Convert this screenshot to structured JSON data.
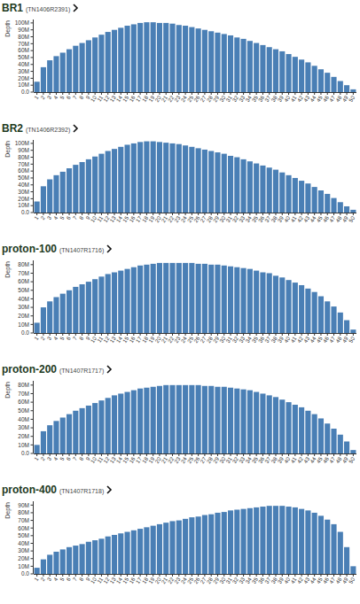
{
  "chart_data": [
    {
      "type": "bar",
      "title": "BR1",
      "subtitle": "(TN1406R2391)",
      "y_label": "Depth",
      "categories": [
        "1",
        "2",
        "3",
        "4",
        "5",
        "6",
        "7",
        "8",
        "9",
        "10",
        "11",
        "12",
        "13",
        "14",
        "15",
        "16",
        "17",
        "18",
        "19",
        "20",
        "21",
        "22",
        "23",
        "24",
        "25",
        "26",
        "27",
        "28",
        "29",
        "30",
        "31",
        "32",
        "33",
        "34",
        "35",
        "36",
        "37",
        "38",
        "39",
        "40",
        "41",
        "42",
        "43",
        "44",
        "45",
        "46",
        "47",
        "48",
        "49",
        "50"
      ],
      "values": [
        15000000,
        36000000,
        46000000,
        52000000,
        57000000,
        62000000,
        67000000,
        71000000,
        75000000,
        79000000,
        83000000,
        87000000,
        90000000,
        93000000,
        96000000,
        98000000,
        100000000,
        101000000,
        101000000,
        100000000,
        100000000,
        99000000,
        97000000,
        96000000,
        94000000,
        92000000,
        90000000,
        88000000,
        86000000,
        84000000,
        82000000,
        79000000,
        77000000,
        74000000,
        71000000,
        68000000,
        65000000,
        62000000,
        59000000,
        55000000,
        51000000,
        47000000,
        43000000,
        38000000,
        33000000,
        28000000,
        22000000,
        16000000,
        10000000,
        4000000
      ],
      "color": "#4a7fb5",
      "ylim": [
        0,
        105000000
      ],
      "yticks": [
        {
          "value": 0,
          "label": "0.0"
        },
        {
          "value": 10000000,
          "label": "10M"
        },
        {
          "value": 20000000,
          "label": "20M"
        },
        {
          "value": 30000000,
          "label": "30M"
        },
        {
          "value": 40000000,
          "label": "40M"
        },
        {
          "value": 50000000,
          "label": "50M"
        },
        {
          "value": 60000000,
          "label": "60M"
        },
        {
          "value": 70000000,
          "label": "70M"
        },
        {
          "value": 80000000,
          "label": "80M"
        },
        {
          "value": 90000000,
          "label": "90M"
        },
        {
          "value": 100000000,
          "label": "100M"
        }
      ],
      "grid": false
    },
    {
      "type": "bar",
      "title": "BR2",
      "subtitle": "(TN1406R2392)",
      "y_label": "Depth",
      "categories": [
        "1",
        "2",
        "3",
        "4",
        "5",
        "6",
        "7",
        "8",
        "9",
        "10",
        "11",
        "12",
        "13",
        "14",
        "15",
        "16",
        "17",
        "18",
        "19",
        "20",
        "21",
        "22",
        "23",
        "24",
        "25",
        "26",
        "27",
        "28",
        "29",
        "30",
        "31",
        "32",
        "33",
        "34",
        "35",
        "36",
        "37",
        "38",
        "39",
        "40",
        "41",
        "42",
        "43",
        "44",
        "45",
        "46",
        "47",
        "48",
        "49",
        "50"
      ],
      "values": [
        16000000,
        38000000,
        48000000,
        54000000,
        59000000,
        64000000,
        69000000,
        73000000,
        77000000,
        81000000,
        85000000,
        89000000,
        92000000,
        95000000,
        98000000,
        100000000,
        102000000,
        103000000,
        103000000,
        102000000,
        101000000,
        100000000,
        99000000,
        97000000,
        95000000,
        93000000,
        91000000,
        89000000,
        87000000,
        85000000,
        82000000,
        80000000,
        77000000,
        74000000,
        71000000,
        68000000,
        65000000,
        62000000,
        58000000,
        54000000,
        50000000,
        46000000,
        42000000,
        37000000,
        32000000,
        27000000,
        21000000,
        15000000,
        9000000,
        4000000
      ],
      "color": "#4a7fb5",
      "ylim": [
        0,
        105000000
      ],
      "yticks": [
        {
          "value": 0,
          "label": "0.0"
        },
        {
          "value": 10000000,
          "label": "10M"
        },
        {
          "value": 20000000,
          "label": "20M"
        },
        {
          "value": 30000000,
          "label": "30M"
        },
        {
          "value": 40000000,
          "label": "40M"
        },
        {
          "value": 50000000,
          "label": "50M"
        },
        {
          "value": 60000000,
          "label": "60M"
        },
        {
          "value": 70000000,
          "label": "70M"
        },
        {
          "value": 80000000,
          "label": "80M"
        },
        {
          "value": 90000000,
          "label": "90M"
        },
        {
          "value": 100000000,
          "label": "100M"
        }
      ],
      "grid": false
    },
    {
      "type": "bar",
      "title": "proton-100",
      "subtitle": "(TN1407R1716)",
      "y_label": "Depth",
      "categories": [
        "1",
        "2",
        "3",
        "4",
        "5",
        "6",
        "7",
        "8",
        "9",
        "10",
        "11",
        "12",
        "13",
        "14",
        "15",
        "16",
        "17",
        "18",
        "19",
        "20",
        "21",
        "22",
        "23",
        "24",
        "25",
        "26",
        "27",
        "28",
        "29",
        "30",
        "31",
        "32",
        "33",
        "34",
        "35",
        "36",
        "37",
        "38",
        "39",
        "40",
        "41",
        "42",
        "43",
        "44",
        "45",
        "46",
        "47",
        "48",
        "49",
        "50"
      ],
      "values": [
        12000000,
        30000000,
        37000000,
        42000000,
        46000000,
        50000000,
        54000000,
        57000000,
        60000000,
        63000000,
        66000000,
        69000000,
        71000000,
        73000000,
        75000000,
        77000000,
        79000000,
        80000000,
        81000000,
        82000000,
        82000000,
        82000000,
        82000000,
        82000000,
        82000000,
        81000000,
        81000000,
        80000000,
        80000000,
        79000000,
        78000000,
        77000000,
        76000000,
        75000000,
        73000000,
        71000000,
        70000000,
        67000000,
        65000000,
        62000000,
        59000000,
        56000000,
        52000000,
        48000000,
        43000000,
        37000000,
        31000000,
        24000000,
        15000000,
        4000000
      ],
      "color": "#4a7fb5",
      "ylim": [
        0,
        85000000
      ],
      "yticks": [
        {
          "value": 0,
          "label": "0.0"
        },
        {
          "value": 10000000,
          "label": "10M"
        },
        {
          "value": 20000000,
          "label": "20M"
        },
        {
          "value": 30000000,
          "label": "30M"
        },
        {
          "value": 40000000,
          "label": "40M"
        },
        {
          "value": 50000000,
          "label": "50M"
        },
        {
          "value": 60000000,
          "label": "60M"
        },
        {
          "value": 70000000,
          "label": "70M"
        },
        {
          "value": 80000000,
          "label": "80M"
        }
      ],
      "grid": false
    },
    {
      "type": "bar",
      "title": "proton-200",
      "subtitle": "(TN1407R1717)",
      "y_label": "Depth",
      "categories": [
        "1",
        "2",
        "3",
        "4",
        "5",
        "6",
        "7",
        "8",
        "9",
        "10",
        "11",
        "12",
        "13",
        "14",
        "15",
        "16",
        "17",
        "18",
        "19",
        "20",
        "21",
        "22",
        "23",
        "24",
        "25",
        "26",
        "27",
        "28",
        "29",
        "30",
        "31",
        "32",
        "33",
        "34",
        "35",
        "36",
        "37",
        "38",
        "39",
        "40",
        "41",
        "42",
        "43",
        "44",
        "45",
        "46",
        "47",
        "48",
        "49",
        "50"
      ],
      "values": [
        10000000,
        26000000,
        33000000,
        38000000,
        42000000,
        46000000,
        50000000,
        53000000,
        56000000,
        59000000,
        62000000,
        65000000,
        68000000,
        70000000,
        72000000,
        74000000,
        76000000,
        77000000,
        78000000,
        79000000,
        80000000,
        80000000,
        80000000,
        80000000,
        80000000,
        80000000,
        79000000,
        79000000,
        78000000,
        78000000,
        77000000,
        76000000,
        75000000,
        74000000,
        72000000,
        70000000,
        68000000,
        66000000,
        63000000,
        60000000,
        57000000,
        54000000,
        50000000,
        46000000,
        41000000,
        35000000,
        29000000,
        22000000,
        14000000,
        4000000
      ],
      "color": "#4a7fb5",
      "ylim": [
        0,
        85000000
      ],
      "yticks": [
        {
          "value": 0,
          "label": "0.0"
        },
        {
          "value": 10000000,
          "label": "10M"
        },
        {
          "value": 20000000,
          "label": "20M"
        },
        {
          "value": 30000000,
          "label": "30M"
        },
        {
          "value": 40000000,
          "label": "40M"
        },
        {
          "value": 50000000,
          "label": "50M"
        },
        {
          "value": 60000000,
          "label": "60M"
        },
        {
          "value": 70000000,
          "label": "70M"
        },
        {
          "value": 80000000,
          "label": "80M"
        }
      ],
      "grid": false
    },
    {
      "type": "bar",
      "title": "proton-400",
      "subtitle": "(TN1407R1718)",
      "y_label": "Depth",
      "categories": [
        "1",
        "2",
        "3",
        "4",
        "5",
        "6",
        "7",
        "8",
        "9",
        "10",
        "11",
        "12",
        "13",
        "14",
        "15",
        "16",
        "17",
        "18",
        "19",
        "20",
        "21",
        "22",
        "23",
        "24",
        "25",
        "26",
        "27",
        "28",
        "29",
        "30",
        "31",
        "32",
        "33",
        "34",
        "35",
        "36",
        "37",
        "38",
        "39",
        "40",
        "41",
        "42",
        "43",
        "44",
        "45",
        "46",
        "47",
        "48",
        "49",
        "50"
      ],
      "values": [
        8000000,
        19000000,
        25000000,
        29000000,
        32000000,
        35000000,
        37000000,
        39000000,
        42000000,
        44000000,
        46000000,
        49000000,
        51000000,
        53000000,
        55000000,
        57000000,
        59000000,
        61000000,
        63000000,
        65000000,
        67000000,
        69000000,
        70000000,
        72000000,
        74000000,
        75000000,
        77000000,
        78000000,
        80000000,
        81000000,
        83000000,
        84000000,
        85000000,
        86000000,
        87000000,
        88000000,
        89000000,
        89000000,
        89000000,
        88000000,
        87000000,
        85000000,
        83000000,
        80000000,
        76000000,
        71000000,
        65000000,
        55000000,
        35000000,
        10000000
      ],
      "color": "#4a7fb5",
      "ylim": [
        0,
        95000000
      ],
      "yticks": [
        {
          "value": 0,
          "label": "0.0"
        },
        {
          "value": 10000000,
          "label": "10M"
        },
        {
          "value": 20000000,
          "label": "20M"
        },
        {
          "value": 30000000,
          "label": "30M"
        },
        {
          "value": 40000000,
          "label": "40M"
        },
        {
          "value": 50000000,
          "label": "50M"
        },
        {
          "value": 60000000,
          "label": "60M"
        },
        {
          "value": 70000000,
          "label": "70M"
        },
        {
          "value": 80000000,
          "label": "80M"
        },
        {
          "value": 90000000,
          "label": "90M"
        }
      ],
      "grid": false
    }
  ]
}
